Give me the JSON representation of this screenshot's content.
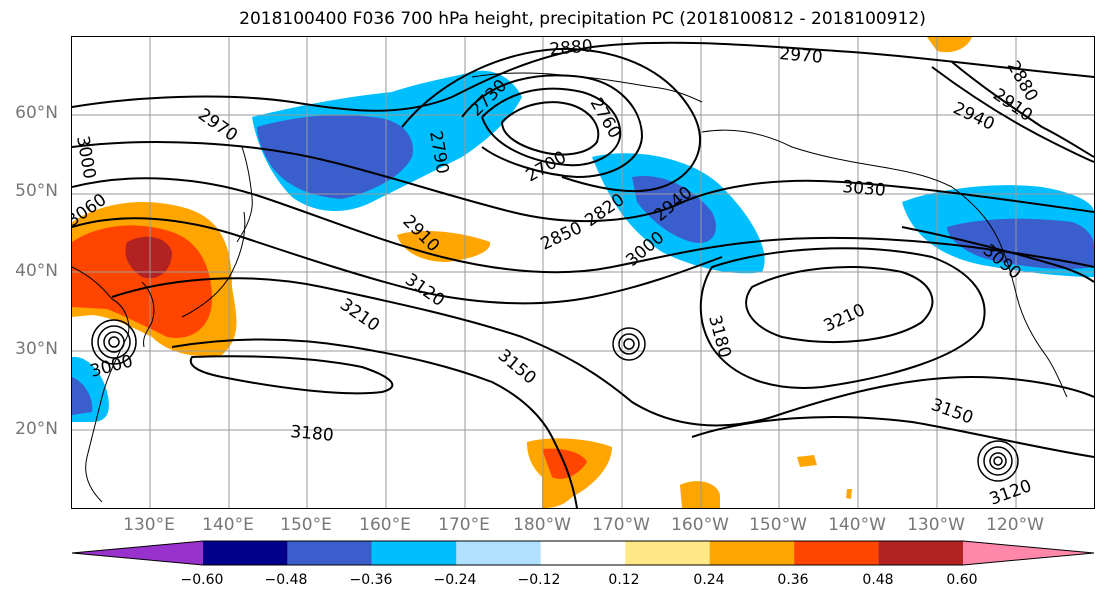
{
  "title": "2018100400 F036 700 hPa height, precipitation PC (2018100812 - 2018100912)",
  "lat_labels": [
    "60°N",
    "50°N",
    "40°N",
    "30°N",
    "20°N"
  ],
  "lon_labels": [
    "130°E",
    "140°E",
    "150°E",
    "160°E",
    "170°E",
    "180°W",
    "170°W",
    "160°W",
    "150°W",
    "140°W",
    "130°W",
    "120°W"
  ],
  "contour_labels": [
    "2880",
    "2970",
    "2730",
    "2760",
    "2790",
    "2700",
    "2970",
    "3000",
    "3060",
    "2910",
    "2940",
    "3030",
    "2820",
    "2940",
    "2850",
    "2910",
    "3000",
    "3120",
    "3090",
    "3210",
    "3180",
    "3210",
    "3150",
    "3000",
    "3180",
    "3150",
    "3120",
    "2880"
  ],
  "colorbar": {
    "ticks": [
      "−0.60",
      "−0.48",
      "−0.36",
      "−0.24",
      "−0.12",
      "0.12",
      "0.24",
      "0.36",
      "0.48",
      "0.60"
    ],
    "colors": [
      "#9932cc",
      "#00008b",
      "#3a5fcd",
      "#00bfff",
      "#b0e2ff",
      "#ffffff",
      "#ffe885",
      "#ffa500",
      "#ff4500",
      "#b22222",
      "#ff88aa"
    ]
  }
}
